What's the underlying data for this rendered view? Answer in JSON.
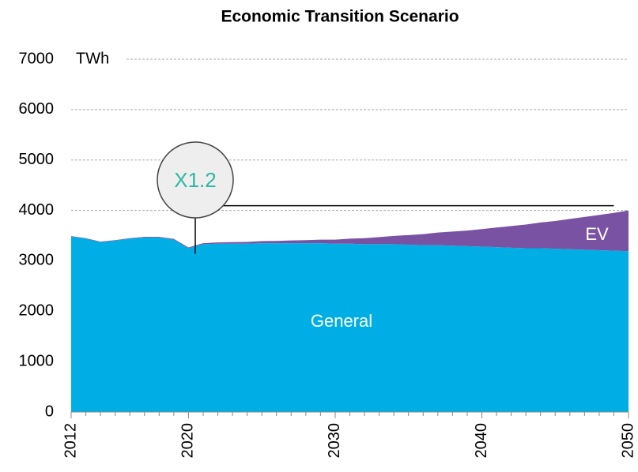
{
  "chart_data": {
    "type": "stacked_area",
    "title": "Economic Transition Scenario",
    "y_unit_label": "TWh",
    "multiplier_label": "X1.2",
    "x": [
      2012,
      2013,
      2014,
      2015,
      2016,
      2017,
      2018,
      2019,
      2020,
      2021,
      2022,
      2023,
      2024,
      2025,
      2026,
      2027,
      2028,
      2029,
      2030,
      2031,
      2032,
      2033,
      2034,
      2035,
      2036,
      2037,
      2038,
      2039,
      2040,
      2041,
      2042,
      2043,
      2044,
      2045,
      2046,
      2047,
      2048,
      2049,
      2050
    ],
    "series": [
      {
        "name": "General",
        "color": "#00aee6",
        "values": [
          3480,
          3440,
          3370,
          3400,
          3440,
          3460,
          3460,
          3420,
          3250,
          3330,
          3340,
          3340,
          3340,
          3350,
          3350,
          3350,
          3350,
          3350,
          3340,
          3340,
          3330,
          3330,
          3330,
          3320,
          3310,
          3310,
          3300,
          3290,
          3280,
          3270,
          3260,
          3250,
          3250,
          3240,
          3230,
          3220,
          3210,
          3200,
          3190
        ]
      },
      {
        "name": "EV",
        "color": "#7a52a3",
        "values": [
          10,
          10,
          10,
          10,
          10,
          15,
          15,
          15,
          15,
          20,
          25,
          30,
          35,
          40,
          45,
          55,
          60,
          70,
          80,
          100,
          120,
          140,
          165,
          190,
          220,
          250,
          280,
          310,
          350,
          390,
          430,
          470,
          510,
          550,
          600,
          650,
          700,
          750,
          810
        ]
      }
    ],
    "xlim": [
      2012,
      2050
    ],
    "xticks": [
      2012,
      2020,
      2030,
      2040,
      2050
    ],
    "ylim": [
      0,
      7000
    ],
    "yticks": [
      0,
      1000,
      2000,
      3000,
      4000,
      5000,
      6000,
      7000
    ],
    "grid": true
  }
}
